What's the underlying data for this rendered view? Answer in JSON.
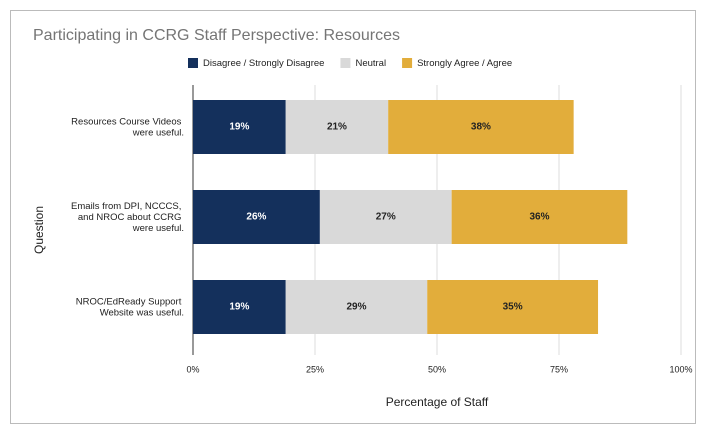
{
  "chart_data": {
    "type": "stacked_barh",
    "title": "Participating in CCRG Staff Perspective: Resources",
    "x_label": "Percentage of Staff",
    "y_label": "Question",
    "categories": [
      "Resources Course Videos were useful.",
      "Emails from DPI, NCCCS, and NROC about CCRG were useful.",
      "NROC/EdReady Support Website was useful."
    ],
    "series": [
      {
        "name": "Disagree / Strongly Disagree",
        "color": "#14305c",
        "label_color": "#ffffff",
        "values": [
          19,
          26,
          19
        ],
        "value_labels": [
          "19%",
          "26%",
          "19%"
        ]
      },
      {
        "name": "Neutral",
        "color": "#d9d9d9",
        "label_color": "#222222",
        "values": [
          21,
          27,
          29
        ],
        "value_labels": [
          "21%",
          "27%",
          "29%"
        ]
      },
      {
        "name": "Strongly Agree / Agree",
        "color": "#e2ad3b",
        "label_color": "#222222",
        "values": [
          38,
          36,
          35
        ],
        "value_labels": [
          "38%",
          "36%",
          "35%"
        ]
      }
    ],
    "xlim": [
      0,
      100
    ],
    "xticks": [
      {
        "value": 0,
        "label": "0%"
      },
      {
        "value": 25,
        "label": "25%"
      },
      {
        "value": 50,
        "label": "50%"
      },
      {
        "value": 75,
        "label": "75%"
      },
      {
        "value": 100,
        "label": "100%"
      }
    ],
    "grid": true,
    "legend": "top"
  }
}
